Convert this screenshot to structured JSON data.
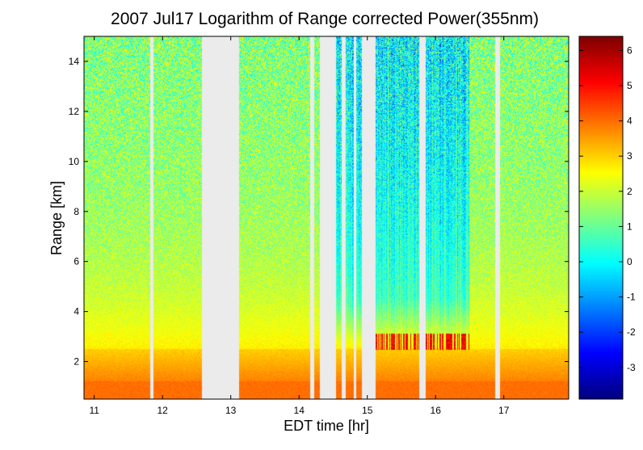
{
  "chart_data": {
    "type": "heatmap",
    "title": "2007 Jul17  Logarithm of Range corrected Power(355nm)",
    "xlabel": "EDT time [hr]",
    "ylabel": "Range [km]",
    "xlim": [
      10.85,
      17.95
    ],
    "ylim": [
      0.5,
      15
    ],
    "x_ticks": [
      "11",
      "12",
      "13",
      "14",
      "15",
      "16",
      "17"
    ],
    "y_ticks": [
      "2",
      "4",
      "6",
      "8",
      "10",
      "12",
      "14"
    ],
    "colorbar": {
      "range": [
        -3.9,
        6.4
      ],
      "colormap": "jet",
      "ticks": [
        "-3",
        "-2",
        "-1",
        "0",
        "1",
        "2",
        "3",
        "4",
        "5",
        "6"
      ]
    },
    "missing_data_intervals_hr": [
      [
        11.82,
        11.86
      ],
      [
        12.58,
        13.12
      ],
      [
        14.16,
        14.22
      ],
      [
        14.3,
        14.54
      ],
      [
        14.63,
        14.68
      ],
      [
        14.8,
        14.84
      ],
      [
        14.92,
        15.12
      ],
      [
        15.76,
        15.86
      ],
      [
        16.88,
        16.95
      ]
    ],
    "field_description": {
      "boundary_layer_top_km": 2.5,
      "surface_layer_value": 4.0,
      "boundary_layer_value": 3.0,
      "free_troposphere_value": 1.3,
      "clear_air_low_signal_period_hr": [
        14.5,
        16.5
      ],
      "cloud_layer_period_hr": [
        15.1,
        16.5
      ],
      "cloud_layer_km": [
        2.45,
        3.1
      ]
    }
  }
}
